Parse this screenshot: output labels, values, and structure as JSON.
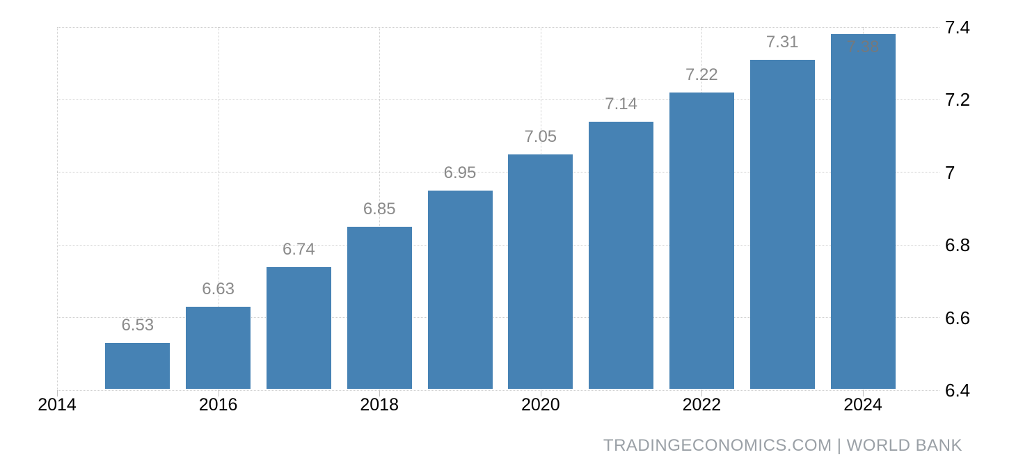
{
  "chart_data": {
    "type": "bar",
    "x": [
      2015,
      2016,
      2017,
      2018,
      2019,
      2020,
      2021,
      2022,
      2023,
      2024
    ],
    "values": [
      6.53,
      6.63,
      6.74,
      6.85,
      6.95,
      7.05,
      7.14,
      7.22,
      7.31,
      7.38
    ],
    "bar_labels": [
      "6.53",
      "6.63",
      "6.74",
      "6.85",
      "6.95",
      "7.05",
      "7.14",
      "7.22",
      "7.31",
      "7.38"
    ],
    "inside_label_index": 9,
    "title": "",
    "xlabel": "",
    "ylabel": "",
    "x_ticks": [
      2014,
      2016,
      2018,
      2020,
      2022,
      2024
    ],
    "x_tick_labels": [
      "2014",
      "2016",
      "2018",
      "2020",
      "2022",
      "2024"
    ],
    "y_ticks": [
      7.4,
      7.2,
      7.0,
      6.8,
      6.6,
      6.4
    ],
    "y_tick_labels": [
      "7.4",
      "7.2",
      "7",
      "6.8",
      "6.6",
      "6.4"
    ],
    "ylim": [
      6.4,
      7.4
    ],
    "y_axis_side": "right",
    "grid": "dotted-both-axes",
    "legend": "none",
    "colors": {
      "bar": "#4682b4",
      "bar_label": "#8a8a8a",
      "bar_label_inside": "#75797c",
      "axis_text": "#000000",
      "gridline": "#cfcfcf",
      "footer_text": "#9aa0a6"
    }
  },
  "footer": {
    "attribution": "TRADINGECONOMICS.COM | WORLD BANK"
  }
}
